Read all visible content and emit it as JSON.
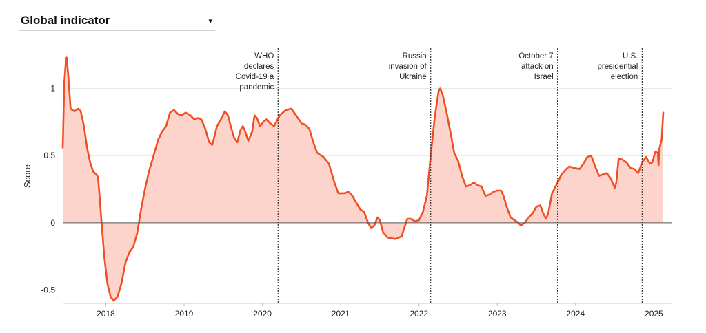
{
  "selector": {
    "label": "Global indicator",
    "caret": "▾",
    "caret_icon": "chevron-down-icon"
  },
  "colors": {
    "line": "#f04e23",
    "fill": "#fdd4cc",
    "grid": "#e4e4e4",
    "zero": "#555555",
    "event": "#333333"
  },
  "chart_data": {
    "type": "area",
    "title": "",
    "xlabel": "",
    "ylabel": "Score",
    "xlim": [
      2017.45,
      2025.12
    ],
    "ylim": [
      -0.6,
      1.3
    ],
    "grid": true,
    "y_ticks": [
      {
        "value": -0.5,
        "label": "-0.5"
      },
      {
        "value": 0,
        "label": "0"
      },
      {
        "value": 0.5,
        "label": "0.5"
      },
      {
        "value": 1,
        "label": "1"
      }
    ],
    "x_ticks": [
      {
        "value": 2018,
        "label": "2018"
      },
      {
        "value": 2019,
        "label": "2019"
      },
      {
        "value": 2020,
        "label": "2020"
      },
      {
        "value": 2021,
        "label": "2021"
      },
      {
        "value": 2022,
        "label": "2022"
      },
      {
        "value": 2023,
        "label": "2023"
      },
      {
        "value": 2024,
        "label": "2024"
      },
      {
        "value": 2025,
        "label": "2025"
      }
    ],
    "events": [
      {
        "x": 2020.2,
        "lines": [
          "WHO",
          "declares",
          "Covid-19 a",
          "pandemic"
        ]
      },
      {
        "x": 2022.15,
        "lines": [
          "Russia",
          "invasion of",
          "Ukraine"
        ]
      },
      {
        "x": 2023.77,
        "lines": [
          "October 7",
          "attack on",
          "Israel"
        ]
      },
      {
        "x": 2024.85,
        "lines": [
          "U.S.",
          "presidential",
          "election"
        ]
      }
    ],
    "series": [
      {
        "points": [
          [
            2017.45,
            0.56
          ],
          [
            2017.47,
            1.05
          ],
          [
            2017.49,
            1.2
          ],
          [
            2017.5,
            1.23
          ],
          [
            2017.52,
            1.1
          ],
          [
            2017.55,
            0.85
          ],
          [
            2017.6,
            0.83
          ],
          [
            2017.65,
            0.85
          ],
          [
            2017.68,
            0.83
          ],
          [
            2017.72,
            0.72
          ],
          [
            2017.76,
            0.56
          ],
          [
            2017.8,
            0.45
          ],
          [
            2017.84,
            0.38
          ],
          [
            2017.88,
            0.36
          ],
          [
            2017.9,
            0.34
          ],
          [
            2017.92,
            0.2
          ],
          [
            2017.94,
            0.05
          ],
          [
            2017.96,
            -0.1
          ],
          [
            2017.98,
            -0.25
          ],
          [
            2018.02,
            -0.45
          ],
          [
            2018.06,
            -0.55
          ],
          [
            2018.1,
            -0.58
          ],
          [
            2018.15,
            -0.55
          ],
          [
            2018.2,
            -0.45
          ],
          [
            2018.25,
            -0.3
          ],
          [
            2018.3,
            -0.22
          ],
          [
            2018.35,
            -0.18
          ],
          [
            2018.4,
            -0.08
          ],
          [
            2018.45,
            0.1
          ],
          [
            2018.5,
            0.25
          ],
          [
            2018.55,
            0.38
          ],
          [
            2018.6,
            0.48
          ],
          [
            2018.67,
            0.62
          ],
          [
            2018.72,
            0.68
          ],
          [
            2018.77,
            0.72
          ],
          [
            2018.82,
            0.82
          ],
          [
            2018.87,
            0.84
          ],
          [
            2018.92,
            0.81
          ],
          [
            2018.97,
            0.8
          ],
          [
            2019.02,
            0.82
          ],
          [
            2019.08,
            0.8
          ],
          [
            2019.13,
            0.77
          ],
          [
            2019.18,
            0.78
          ],
          [
            2019.22,
            0.77
          ],
          [
            2019.27,
            0.7
          ],
          [
            2019.32,
            0.6
          ],
          [
            2019.36,
            0.58
          ],
          [
            2019.42,
            0.72
          ],
          [
            2019.48,
            0.78
          ],
          [
            2019.52,
            0.83
          ],
          [
            2019.56,
            0.8
          ],
          [
            2019.6,
            0.71
          ],
          [
            2019.64,
            0.63
          ],
          [
            2019.68,
            0.6
          ],
          [
            2019.72,
            0.69
          ],
          [
            2019.75,
            0.72
          ],
          [
            2019.78,
            0.68
          ],
          [
            2019.82,
            0.61
          ],
          [
            2019.87,
            0.68
          ],
          [
            2019.9,
            0.8
          ],
          [
            2019.93,
            0.78
          ],
          [
            2019.97,
            0.72
          ],
          [
            2020.01,
            0.75
          ],
          [
            2020.05,
            0.77
          ],
          [
            2020.1,
            0.74
          ],
          [
            2020.15,
            0.72
          ],
          [
            2020.22,
            0.8
          ],
          [
            2020.3,
            0.84
          ],
          [
            2020.37,
            0.85
          ],
          [
            2020.43,
            0.8
          ],
          [
            2020.5,
            0.74
          ],
          [
            2020.55,
            0.73
          ],
          [
            2020.6,
            0.7
          ],
          [
            2020.65,
            0.6
          ],
          [
            2020.7,
            0.52
          ],
          [
            2020.78,
            0.49
          ],
          [
            2020.85,
            0.44
          ],
          [
            2020.92,
            0.3
          ],
          [
            2020.97,
            0.22
          ],
          [
            2021.05,
            0.22
          ],
          [
            2021.1,
            0.23
          ],
          [
            2021.15,
            0.2
          ],
          [
            2021.2,
            0.15
          ],
          [
            2021.25,
            0.1
          ],
          [
            2021.3,
            0.08
          ],
          [
            2021.35,
            0.0
          ],
          [
            2021.39,
            -0.04
          ],
          [
            2021.43,
            -0.02
          ],
          [
            2021.47,
            0.04
          ],
          [
            2021.5,
            0.02
          ],
          [
            2021.54,
            -0.07
          ],
          [
            2021.6,
            -0.11
          ],
          [
            2021.7,
            -0.12
          ],
          [
            2021.78,
            -0.1
          ],
          [
            2021.8,
            -0.06
          ],
          [
            2021.85,
            0.03
          ],
          [
            2021.9,
            0.03
          ],
          [
            2021.95,
            0.01
          ],
          [
            2022.0,
            0.02
          ],
          [
            2022.05,
            0.08
          ],
          [
            2022.1,
            0.2
          ],
          [
            2022.15,
            0.5
          ],
          [
            2022.2,
            0.78
          ],
          [
            2022.25,
            0.98
          ],
          [
            2022.27,
            1.0
          ],
          [
            2022.3,
            0.96
          ],
          [
            2022.35,
            0.83
          ],
          [
            2022.4,
            0.68
          ],
          [
            2022.45,
            0.52
          ],
          [
            2022.5,
            0.46
          ],
          [
            2022.55,
            0.35
          ],
          [
            2022.6,
            0.27
          ],
          [
            2022.65,
            0.28
          ],
          [
            2022.7,
            0.3
          ],
          [
            2022.75,
            0.28
          ],
          [
            2022.8,
            0.27
          ],
          [
            2022.85,
            0.2
          ],
          [
            2022.9,
            0.21
          ],
          [
            2022.95,
            0.23
          ],
          [
            2023.0,
            0.24
          ],
          [
            2023.05,
            0.24
          ],
          [
            2023.08,
            0.2
          ],
          [
            2023.12,
            0.12
          ],
          [
            2023.17,
            0.04
          ],
          [
            2023.22,
            0.02
          ],
          [
            2023.27,
            0.0
          ],
          [
            2023.3,
            -0.02
          ],
          [
            2023.35,
            0.0
          ],
          [
            2023.4,
            0.04
          ],
          [
            2023.45,
            0.07
          ],
          [
            2023.5,
            0.12
          ],
          [
            2023.55,
            0.13
          ],
          [
            2023.58,
            0.08
          ],
          [
            2023.62,
            0.03
          ],
          [
            2023.65,
            0.07
          ],
          [
            2023.7,
            0.22
          ],
          [
            2023.77,
            0.3
          ],
          [
            2023.82,
            0.36
          ],
          [
            2023.88,
            0.4
          ],
          [
            2023.92,
            0.42
          ],
          [
            2023.97,
            0.41
          ],
          [
            2024.05,
            0.4
          ],
          [
            2024.1,
            0.44
          ],
          [
            2024.15,
            0.49
          ],
          [
            2024.2,
            0.5
          ],
          [
            2024.25,
            0.42
          ],
          [
            2024.3,
            0.35
          ],
          [
            2024.35,
            0.36
          ],
          [
            2024.4,
            0.37
          ],
          [
            2024.45,
            0.33
          ],
          [
            2024.5,
            0.26
          ],
          [
            2024.52,
            0.3
          ],
          [
            2024.55,
            0.48
          ],
          [
            2024.6,
            0.47
          ],
          [
            2024.65,
            0.45
          ],
          [
            2024.7,
            0.41
          ],
          [
            2024.75,
            0.4
          ],
          [
            2024.8,
            0.37
          ],
          [
            2024.85,
            0.45
          ],
          [
            2024.9,
            0.49
          ],
          [
            2024.95,
            0.44
          ],
          [
            2024.98,
            0.45
          ],
          [
            2025.02,
            0.53
          ],
          [
            2025.05,
            0.52
          ],
          [
            2025.06,
            0.43
          ],
          [
            2025.07,
            0.55
          ],
          [
            2025.1,
            0.62
          ],
          [
            2025.12,
            0.82
          ]
        ]
      }
    ]
  }
}
